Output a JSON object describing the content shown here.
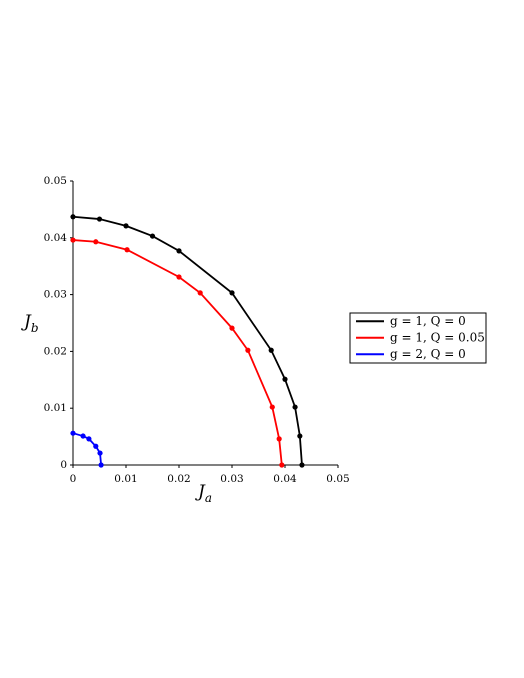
{
  "chart_data": {
    "type": "line",
    "x_label": {
      "symbol": "J",
      "subscript": "a"
    },
    "y_label": {
      "symbol": "J",
      "subscript": "b"
    },
    "xlim": [
      0,
      0.05
    ],
    "ylim": [
      0,
      0.05
    ],
    "xticks": [
      0,
      0.01,
      0.02,
      0.03,
      0.04,
      0.05
    ],
    "yticks": [
      0,
      0.01,
      0.02,
      0.03,
      0.04,
      0.05
    ],
    "grid": false,
    "legend": "right",
    "series": [
      {
        "name": "g = 1, Q = 0",
        "color": "#000000",
        "x": [
          0,
          0.005,
          0.01,
          0.015,
          0.02,
          0.03,
          0.0374,
          0.04,
          0.0419,
          0.0428,
          0.0432
        ],
        "values": [
          0.0437,
          0.0433,
          0.0421,
          0.0403,
          0.0377,
          0.0303,
          0.0202,
          0.0151,
          0.0102,
          0.0051,
          0
        ]
      },
      {
        "name": "g = 1, Q = 0.05",
        "color": "#ff0000",
        "x": [
          0,
          0.0043,
          0.0102,
          0.02,
          0.024,
          0.03,
          0.033,
          0.0376,
          0.0389,
          0.0394
        ],
        "values": [
          0.0396,
          0.0393,
          0.0379,
          0.0331,
          0.0303,
          0.0241,
          0.0202,
          0.0102,
          0.0046,
          0
        ]
      },
      {
        "name": "g = 2, Q = 0",
        "color": "#0000ff",
        "x": [
          0,
          0.0019,
          0.003,
          0.0043,
          0.0051,
          0.0053
        ],
        "values": [
          0.0056,
          0.0051,
          0.0046,
          0.0033,
          0.0021,
          0
        ]
      }
    ]
  }
}
